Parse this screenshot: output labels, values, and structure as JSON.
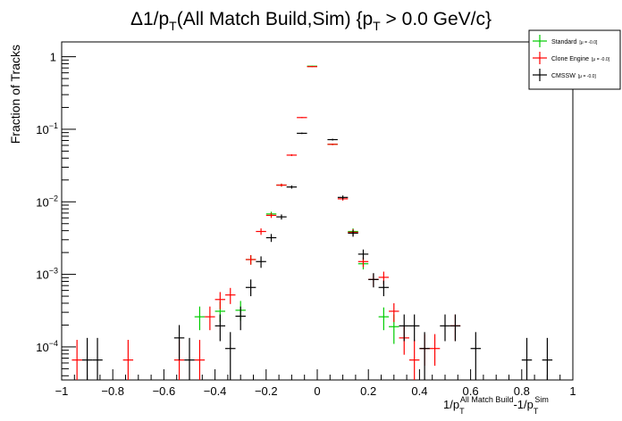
{
  "title": {
    "p1": "Δ1/p",
    "sub1": "T",
    "p2": "(All Match Build,Sim) {p",
    "sub2": "T",
    "p3": " > 0.0 GeV/c}"
  },
  "xlabel": {
    "a": "1/p",
    "a_sub": "T",
    "a_sup": "All Match Build",
    "b": "-1/p",
    "b_sub": "T",
    "b_sup": "Sim"
  },
  "ylabel": "Fraction of Tracks",
  "y_ticks": [
    {
      "value": 0.0001,
      "base": "10",
      "exp": "−4"
    },
    {
      "value": 0.001,
      "base": "10",
      "exp": "−3"
    },
    {
      "value": 0.01,
      "base": "10",
      "exp": "−2"
    },
    {
      "value": 0.1,
      "base": "10",
      "exp": "−1"
    },
    {
      "value": 1,
      "base": "1",
      "exp": ""
    }
  ],
  "x_ticks": [
    "−1",
    "−0.8",
    "−0.6",
    "−0.4",
    "−0.2",
    "0",
    "0.2",
    "0.4",
    "0.6",
    "0.8",
    "1"
  ],
  "legend": [
    {
      "name": "Standard",
      "detail": "[μ = -0.0]",
      "color": "#00cc00"
    },
    {
      "name": "Clone Engine",
      "detail": "[μ = -0.0]",
      "color": "#ff0000"
    },
    {
      "name": "CMSSW",
      "detail": "[μ = -0.0]",
      "color": "#000000"
    }
  ],
  "chart_data": {
    "type": "scatter",
    "x_range": [
      -1,
      1
    ],
    "y_range": [
      3.5e-05,
      1.6
    ],
    "y_scale": "log",
    "bin_width": 0.04,
    "grid": false,
    "legend_position": "top-right",
    "series": [
      {
        "name": "Standard",
        "color": "#00cc00",
        "points": [
          {
            "x": -0.46,
            "y": 0.00026,
            "lo": 0.00017,
            "hi": 0.00036
          },
          {
            "x": -0.38,
            "y": 0.00031,
            "lo": 0.00022,
            "hi": 0.00042
          },
          {
            "x": -0.3,
            "y": 0.00032,
            "lo": 0.00023,
            "hi": 0.00043
          },
          {
            "x": -0.26,
            "y": 0.0016,
            "lo": 0.00136,
            "hi": 0.00184
          },
          {
            "x": -0.18,
            "y": 0.0068,
            "lo": 0.0063,
            "hi": 0.0073
          },
          {
            "x": -0.14,
            "y": 0.017,
            "lo": 0.0162,
            "hi": 0.0178
          },
          {
            "x": -0.02,
            "y": 0.74,
            "lo": 0.73,
            "hi": 0.75
          },
          {
            "x": 0.06,
            "y": 0.062,
            "lo": 0.0605,
            "hi": 0.0635
          },
          {
            "x": 0.14,
            "y": 0.0039,
            "lo": 0.0035,
            "hi": 0.0043
          },
          {
            "x": 0.18,
            "y": 0.0014,
            "lo": 0.00117,
            "hi": 0.00163
          },
          {
            "x": 0.26,
            "y": 0.00026,
            "lo": 0.00017,
            "hi": 0.00035
          },
          {
            "x": 0.3,
            "y": 0.00019,
            "lo": 0.00011,
            "hi": 0.00028
          }
        ]
      },
      {
        "name": "Clone Engine",
        "color": "#ff0000",
        "points": [
          {
            "x": -0.94,
            "y": 6.6e-05,
            "lo": 3.5e-05,
            "hi": 0.000125
          },
          {
            "x": -0.74,
            "y": 6.6e-05,
            "lo": 3.5e-05,
            "hi": 0.000125
          },
          {
            "x": -0.54,
            "y": 6.6e-05,
            "lo": 3.5e-05,
            "hi": 0.000125
          },
          {
            "x": -0.46,
            "y": 6.6e-05,
            "lo": 3.5e-05,
            "hi": 0.000125
          },
          {
            "x": -0.42,
            "y": 0.00026,
            "lo": 0.00017,
            "hi": 0.00036
          },
          {
            "x": -0.38,
            "y": 0.00045,
            "lo": 0.00033,
            "hi": 0.00057
          },
          {
            "x": -0.34,
            "y": 0.00052,
            "lo": 0.00039,
            "hi": 0.00065
          },
          {
            "x": -0.26,
            "y": 0.0016,
            "lo": 0.00136,
            "hi": 0.00184
          },
          {
            "x": -0.22,
            "y": 0.0039,
            "lo": 0.0035,
            "hi": 0.0043
          },
          {
            "x": -0.18,
            "y": 0.0065,
            "lo": 0.006,
            "hi": 0.007
          },
          {
            "x": -0.14,
            "y": 0.017,
            "lo": 0.0162,
            "hi": 0.0178
          },
          {
            "x": -0.1,
            "y": 0.044,
            "lo": 0.0427,
            "hi": 0.0453
          },
          {
            "x": -0.06,
            "y": 0.145,
            "lo": 0.1425,
            "hi": 0.1475
          },
          {
            "x": -0.02,
            "y": 0.73,
            "lo": 0.72,
            "hi": 0.74
          },
          {
            "x": 0.06,
            "y": 0.062,
            "lo": 0.0605,
            "hi": 0.0635
          },
          {
            "x": 0.1,
            "y": 0.011,
            "lo": 0.0104,
            "hi": 0.0116
          },
          {
            "x": 0.14,
            "y": 0.0038,
            "lo": 0.0034,
            "hi": 0.0042
          },
          {
            "x": 0.18,
            "y": 0.0015,
            "lo": 0.00126,
            "hi": 0.00174
          },
          {
            "x": 0.22,
            "y": 0.00085,
            "lo": 0.00068,
            "hi": 0.00102
          },
          {
            "x": 0.26,
            "y": 0.00091,
            "lo": 0.00073,
            "hi": 0.00109
          },
          {
            "x": 0.3,
            "y": 0.00031,
            "lo": 0.00022,
            "hi": 0.0004
          },
          {
            "x": 0.34,
            "y": 0.000133,
            "lo": 7.8e-05,
            "hi": 0.00019
          },
          {
            "x": 0.38,
            "y": 6.6e-05,
            "lo": 3.5e-05,
            "hi": 0.000125
          },
          {
            "x": 0.42,
            "y": 9.5e-05,
            "lo": 5.5e-05,
            "hi": 0.00015
          },
          {
            "x": 0.46,
            "y": 9.5e-05,
            "lo": 5.5e-05,
            "hi": 0.00015
          },
          {
            "x": 0.54,
            "y": 0.000195,
            "lo": 0.00012,
            "hi": 0.00028
          }
        ]
      },
      {
        "name": "CMSSW",
        "color": "#000000",
        "points": [
          {
            "x": -0.9,
            "y": 6.6e-05,
            "lo": 3.5e-05,
            "hi": 0.000133
          },
          {
            "x": -0.86,
            "y": 6.6e-05,
            "lo": 3.5e-05,
            "hi": 0.000133
          },
          {
            "x": -0.54,
            "y": 0.000133,
            "lo": 6.6e-05,
            "hi": 0.0002
          },
          {
            "x": -0.5,
            "y": 6.6e-05,
            "lo": 3.5e-05,
            "hi": 0.000133
          },
          {
            "x": -0.38,
            "y": 0.000195,
            "lo": 0.00012,
            "hi": 0.00028
          },
          {
            "x": -0.34,
            "y": 9.5e-05,
            "lo": 3.5e-05,
            "hi": 0.00016
          },
          {
            "x": -0.3,
            "y": 0.000265,
            "lo": 0.00017,
            "hi": 0.00036
          },
          {
            "x": -0.26,
            "y": 0.00066,
            "lo": 0.0005,
            "hi": 0.00085
          },
          {
            "x": -0.22,
            "y": 0.0015,
            "lo": 0.00123,
            "hi": 0.00177
          },
          {
            "x": -0.18,
            "y": 0.0032,
            "lo": 0.0028,
            "hi": 0.0036
          },
          {
            "x": -0.14,
            "y": 0.0062,
            "lo": 0.0057,
            "hi": 0.0067
          },
          {
            "x": -0.1,
            "y": 0.016,
            "lo": 0.0152,
            "hi": 0.0168
          },
          {
            "x": -0.06,
            "y": 0.088,
            "lo": 0.086,
            "hi": 0.09
          },
          {
            "x": 0.06,
            "y": 0.072,
            "lo": 0.07,
            "hi": 0.074
          },
          {
            "x": 0.1,
            "y": 0.0115,
            "lo": 0.0108,
            "hi": 0.0122
          },
          {
            "x": 0.14,
            "y": 0.0037,
            "lo": 0.0033,
            "hi": 0.0041
          },
          {
            "x": 0.18,
            "y": 0.0019,
            "lo": 0.0016,
            "hi": 0.0022
          },
          {
            "x": 0.22,
            "y": 0.00085,
            "lo": 0.00066,
            "hi": 0.00104
          },
          {
            "x": 0.26,
            "y": 0.00066,
            "lo": 0.0005,
            "hi": 0.00082
          },
          {
            "x": 0.34,
            "y": 0.000195,
            "lo": 0.00012,
            "hi": 0.00028
          },
          {
            "x": 0.38,
            "y": 0.000195,
            "lo": 0.00012,
            "hi": 0.00028
          },
          {
            "x": 0.42,
            "y": 9.5e-05,
            "lo": 3.5e-05,
            "hi": 0.00016
          },
          {
            "x": 0.5,
            "y": 0.000195,
            "lo": 0.00012,
            "hi": 0.00028
          },
          {
            "x": 0.54,
            "y": 0.000195,
            "lo": 0.00012,
            "hi": 0.00028
          },
          {
            "x": 0.62,
            "y": 9.5e-05,
            "lo": 3.5e-05,
            "hi": 0.00016
          },
          {
            "x": 0.82,
            "y": 6.6e-05,
            "lo": 3.5e-05,
            "hi": 0.000133
          },
          {
            "x": 0.9,
            "y": 6.6e-05,
            "lo": 3.5e-05,
            "hi": 0.000133
          }
        ]
      }
    ]
  }
}
